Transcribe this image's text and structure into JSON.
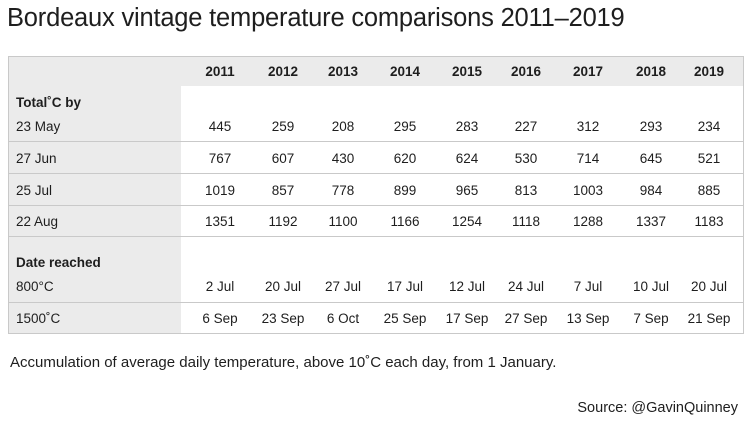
{
  "title": "Bordeaux vintage temperature comparisons 2011–2019",
  "years": [
    "2011",
    "2012",
    "2013",
    "2014",
    "2015",
    "2016",
    "2017",
    "2018",
    "2019"
  ],
  "sections": {
    "total_heading": "Total˚C by",
    "date_heading": "Date reached"
  },
  "rows": [
    {
      "label": "23 May",
      "values": [
        "445",
        "259",
        "208",
        "295",
        "283",
        "227",
        "312",
        "293",
        "234"
      ]
    },
    {
      "label": "27 Jun",
      "values": [
        "767",
        "607",
        "430",
        "620",
        "624",
        "530",
        "714",
        "645",
        "521"
      ]
    },
    {
      "label": "25 Jul",
      "values": [
        "1019",
        "857",
        "778",
        "899",
        "965",
        "813",
        "1003",
        "984",
        "885"
      ]
    },
    {
      "label": "22 Aug",
      "values": [
        "1351",
        "1192",
        "1100",
        "1166",
        "1254",
        "1118",
        "1288",
        "1337",
        "1183"
      ]
    },
    {
      "label": "800°C",
      "values": [
        "2 Jul",
        "20 Jul",
        "27 Jul",
        "17 Jul",
        "12 Jul",
        "24 Jul",
        "7 Jul",
        "10 Jul",
        "20 Jul"
      ]
    },
    {
      "label": "1500˚C",
      "values": [
        "6 Sep",
        "23 Sep",
        "6 Oct",
        "25 Sep",
        "17 Sep",
        "27 Sep",
        "13 Sep",
        "7 Sep",
        "21 Sep"
      ]
    }
  ],
  "footnote": "Accumulation of average daily temperature, above 10˚C each day, from 1 January.",
  "source": "Source: @GavinQuinney"
}
